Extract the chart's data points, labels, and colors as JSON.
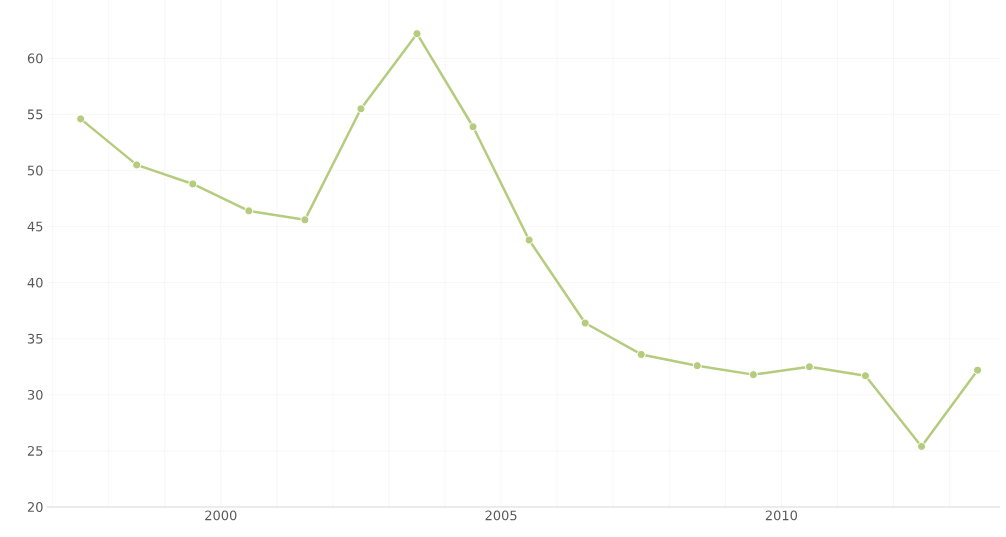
{
  "chart_data": {
    "type": "line",
    "x": [
      1997.5,
      1998.5,
      1999.5,
      2000.5,
      2001.5,
      2002.5,
      2003.5,
      2004.5,
      2005.5,
      2006.5,
      2007.5,
      2008.5,
      2009.5,
      2010.5,
      2011.5,
      2012.5,
      2013.5
    ],
    "series": [
      {
        "color": "#b5cc7e",
        "values": [
          54.6,
          50.5,
          48.8,
          46.4,
          45.6,
          55.5,
          62.2,
          53.9,
          43.8,
          36.4,
          33.6,
          32.6,
          31.8,
          32.5,
          31.7,
          25.4,
          32.2
        ]
      }
    ],
    "xlim": [
      1996.9,
      2013.9
    ],
    "ylim": [
      20,
      65.2
    ],
    "xticks": [
      {
        "value": 1997,
        "label": null
      },
      {
        "value": 1998,
        "label": null
      },
      {
        "value": 1999,
        "label": null
      },
      2000,
      {
        "value": 2001,
        "label": null
      },
      {
        "value": 2002,
        "label": null
      },
      {
        "value": 2003,
        "label": null
      },
      {
        "value": 2004,
        "label": null
      },
      2005,
      {
        "value": 2006,
        "label": null
      },
      {
        "value": 2007,
        "label": null
      },
      {
        "value": 2008,
        "label": null
      },
      {
        "value": 2009,
        "label": null
      },
      2010,
      {
        "value": 2011,
        "label": null
      },
      {
        "value": 2012,
        "label": null
      },
      {
        "value": 2013,
        "label": null
      }
    ],
    "yticks": [
      20,
      25,
      30,
      35,
      40,
      45,
      50,
      55,
      60
    ],
    "grid": true,
    "marker": "circle",
    "line_style": "solid"
  }
}
